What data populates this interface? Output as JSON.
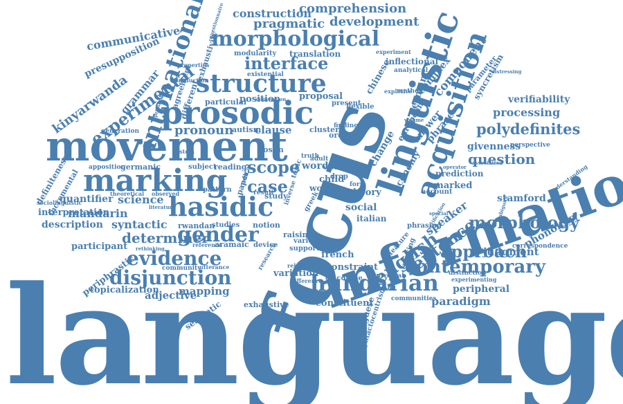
{
  "colors": {
    "word": "#4a7fb0",
    "background": "#ffffff"
  },
  "words": [
    "language",
    "focus",
    "information",
    "movement",
    "prosodic",
    "linguistic",
    "acquisition",
    "marking",
    "hasidic",
    "hungarian",
    "structure",
    "morphological",
    "intonational",
    "contemporary",
    "evidence",
    "english",
    "gender",
    "disjunction",
    "sentence",
    "approach",
    "experimental",
    "morphology",
    "polydefinites",
    "case",
    "scope",
    "interface",
    "determiner",
    "kinyarwanda",
    "question",
    "pronoun",
    "construction",
    "comprehension",
    "pragmatic",
    "development",
    "communicative",
    "presupposition",
    "grammar",
    "mandarin",
    "syntactic",
    "quantifier",
    "science",
    "interpretation",
    "description",
    "participant",
    "periphrastic",
    "topicalization",
    "adjective",
    "mapping",
    "semantic",
    "exhaustive",
    "variation",
    "constituent",
    "portuguese",
    "syntactocentrism",
    "paradigm",
    "peripheral",
    "judgment",
    "phonology",
    "stamford",
    "verifiability",
    "processing",
    "givenness",
    "speaker",
    "component",
    "complex",
    "answer",
    "phrase",
    "german",
    "european",
    "economy",
    "change",
    "italian",
    "social",
    "theory",
    "french",
    "constraint",
    "discourse",
    "marked",
    "prediction",
    "definiteness",
    "incremental",
    "apposition",
    "germanic",
    "reading",
    "subject",
    "clause",
    "autism",
    "particular",
    "position",
    "proposal",
    "present",
    "flexible",
    "cluster",
    "word",
    "visual",
    "child",
    "world",
    "study",
    "result",
    "paper",
    "pattern",
    "theoretical",
    "observed",
    "rwandan",
    "studies",
    "notion",
    "aramaic",
    "device",
    "support",
    "raising",
    "variety",
    "sociolinguistic",
    "community",
    "utterance",
    "research",
    "greek",
    "translation",
    "modularity",
    "existential",
    "different",
    "exhaustivity",
    "agreement",
    "chinese",
    "inflectional",
    "experiment",
    "analytical",
    "method",
    "expletive",
    "parameter",
    "syncretism",
    "perspective",
    "correspondence",
    "experimenting",
    "communities",
    "universal",
    "distinction",
    "phrasing",
    "tracking",
    "feature",
    "form",
    "account",
    "order",
    "finding",
    "adult",
    "data",
    "drop",
    "loshn",
    "system",
    "generation",
    "truth",
    "relevant",
    "difference",
    "radical",
    "inverse",
    "topic",
    "spell",
    "understanding",
    "questionnaire",
    "properties",
    "production",
    "primarily",
    "convention",
    "operator",
    "association",
    "volume",
    "special",
    "distressing",
    "rethinking",
    "literature",
    "reference",
    "ambiguity",
    "verification"
  ]
}
